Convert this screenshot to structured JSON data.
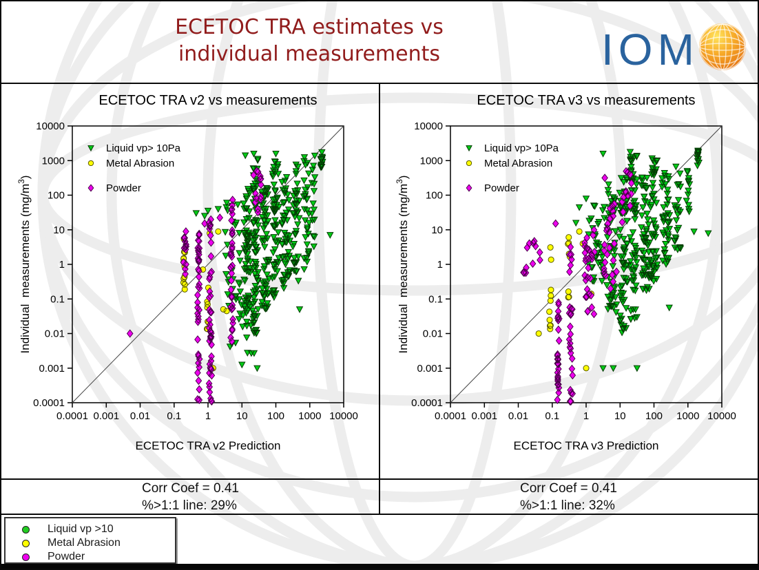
{
  "header": {
    "title_line1": "ECETOC TRA estimates vs",
    "title_line2": "individual measurements",
    "logo_text": "IOM"
  },
  "colors": {
    "title_red": "#911c1c",
    "logo_blue": "#2a639e",
    "liquid_green": "#00cb17",
    "metal_yellow": "#ffff00",
    "powder_magenta": "#ee00ee",
    "watermark_gray": "#ededed",
    "diagonal_line": "#444444"
  },
  "chart_data": [
    {
      "type": "scatter",
      "svg_name": "chart-v2",
      "title": "ECETOC TRA v2 vs measurements",
      "xlabel": "ECETOC TRA v2 Prediction",
      "ylabel_parts": [
        "Individual  measurements (mg/m",
        "3",
        ")"
      ],
      "xlim": [
        0.0001,
        10000
      ],
      "ylim": [
        0.0001,
        10000
      ],
      "log_scale": true,
      "one_to_one_line": true,
      "grid": false,
      "legend_position": "upper-left-inside",
      "x_ticks": [
        "0.0001",
        "0.001",
        "0.01",
        "0.1",
        "1",
        "10",
        "100",
        "1000",
        "10000"
      ],
      "y_ticks": [
        "0.0001",
        "0.001",
        "0.01",
        "0.1",
        "1",
        "10",
        "100",
        "1000",
        "10000"
      ],
      "stats": {
        "line1": "Corr Coef = 0.41",
        "line2": "%>1:1 line: 29%"
      },
      "series": [
        {
          "name": "Liquid vp> 10Pa",
          "marker": "triangle",
          "fill": "#00cb17",
          "stroke": "#033b03",
          "seed": 11,
          "clusters": [
            [
              1.15,
              0.1,
              -1.5,
              2.2,
              60
            ],
            [
              1.4,
              0.08,
              -2.0,
              3.1,
              70
            ],
            [
              1.7,
              0.12,
              -1.3,
              2.3,
              60
            ],
            [
              2.0,
              0.1,
              -1.0,
              3.1,
              55
            ],
            [
              2.3,
              0.12,
              -0.7,
              2.6,
              50
            ],
            [
              2.6,
              0.1,
              -0.5,
              2.9,
              40
            ],
            [
              2.9,
              0.08,
              -0.3,
              3.1,
              30
            ],
            [
              3.1,
              0.05,
              0.5,
              3.2,
              15
            ],
            [
              3.35,
              0.03,
              2.8,
              3.3,
              12
            ],
            [
              0.75,
              0.25,
              -1.2,
              1.8,
              30
            ],
            [
              1.0,
              0.4,
              -2.6,
              -1.2,
              18
            ]
          ],
          "singles": [
            [
              0.0,
              1.55
            ],
            [
              -0.1,
              1.4
            ],
            [
              0.3,
              1.6
            ],
            [
              -0.35,
              1.48
            ],
            [
              1.0,
              -2.9
            ],
            [
              1.45,
              -3.0
            ],
            [
              2.7,
              -1.3
            ],
            [
              3.6,
              0.85
            ],
            [
              1.35,
              3.2
            ],
            [
              2.0,
              3.2
            ],
            [
              1.1,
              3.15
            ]
          ]
        },
        {
          "name": "Metal Abrasion",
          "marker": "circle",
          "fill": "#ffff00",
          "stroke": "#5a5a00",
          "seed": 22,
          "clusters": [
            [
              -0.7,
              0.03,
              -0.75,
              0.9,
              12
            ],
            [
              0.0,
              0.03,
              -2.0,
              0.85,
              8
            ]
          ],
          "singles": [
            [
              0.3,
              0.95
            ],
            [
              0.55,
              -1.35
            ],
            [
              0.45,
              -1.3
            ],
            [
              0.15,
              -3.0
            ],
            [
              -0.15,
              -0.15
            ],
            [
              0.05,
              0.9
            ]
          ]
        },
        {
          "name": "Powder",
          "marker": "diamond",
          "fill": "#ee00ee",
          "stroke": "#4a004a",
          "seed": 33,
          "clusters": [
            [
              -0.68,
              0.05,
              -0.3,
              1.0,
              14
            ],
            [
              -0.28,
              0.03,
              -4.0,
              0.9,
              40
            ],
            [
              0.07,
              0.04,
              -4.0,
              1.3,
              45
            ],
            [
              0.7,
              0.04,
              -2.3,
              2.0,
              35
            ],
            [
              1.45,
              0.12,
              1.5,
              2.75,
              14
            ]
          ],
          "singles": [
            [
              -2.3,
              -2.0
            ],
            [
              -0.1,
              1.18
            ],
            [
              0.35,
              1.35
            ]
          ]
        }
      ]
    },
    {
      "type": "scatter",
      "svg_name": "chart-v3",
      "title": "ECETOC TRA v3 vs measurements",
      "xlabel": "ECETOC TRA v3 Prediction",
      "ylabel_parts": [
        "Individual  measurements (mg/m",
        "3",
        ")"
      ],
      "xlim": [
        0.0001,
        10000
      ],
      "ylim": [
        0.0001,
        10000
      ],
      "log_scale": true,
      "one_to_one_line": true,
      "grid": false,
      "legend_position": "upper-left-inside",
      "x_ticks": [
        "0.0001",
        "0.001",
        "0.01",
        "0.1",
        "1",
        "10",
        "100",
        "1000",
        "10000"
      ],
      "y_ticks": [
        "0.0001",
        "0.001",
        "0.01",
        "0.1",
        "1",
        "10",
        "100",
        "1000",
        "10000"
      ],
      "stats": {
        "line1": "Corr Coef = 0.41",
        "line2": "%>1:1 line: 32%"
      },
      "series": [
        {
          "name": "Liquid vp> 10Pa",
          "marker": "triangle",
          "fill": "#00cb17",
          "stroke": "#033b03",
          "seed": 44,
          "clusters": [
            [
              0.3,
              0.25,
              -0.5,
              1.7,
              35
            ],
            [
              0.75,
              0.15,
              -1.5,
              2.5,
              55
            ],
            [
              1.1,
              0.12,
              -2.0,
              2.5,
              65
            ],
            [
              1.4,
              0.1,
              -1.8,
              3.2,
              65
            ],
            [
              1.75,
              0.12,
              -0.8,
              2.6,
              55
            ],
            [
              2.0,
              0.1,
              -0.5,
              3.1,
              50
            ],
            [
              2.35,
              0.12,
              0.0,
              2.7,
              40
            ],
            [
              2.7,
              0.1,
              0.3,
              2.9,
              25
            ],
            [
              3.0,
              0.05,
              1.5,
              2.8,
              12
            ],
            [
              3.3,
              0.03,
              2.8,
              3.3,
              12
            ]
          ],
          "singles": [
            [
              -0.2,
              1.65
            ],
            [
              0.0,
              1.9
            ],
            [
              -0.3,
              1.2
            ],
            [
              0.5,
              3.2
            ],
            [
              2.45,
              -1.25
            ],
            [
              3.6,
              0.9
            ],
            [
              1.5,
              -3.0
            ],
            [
              0.8,
              -3.0
            ],
            [
              0.5,
              -3.0
            ],
            [
              1.3,
              3.25
            ],
            [
              3.18,
              0.95
            ]
          ]
        },
        {
          "name": "Metal Abrasion",
          "marker": "circle",
          "fill": "#ffff00",
          "stroke": "#5a5a00",
          "seed": 55,
          "clusters": [
            [
              -1.05,
              0.04,
              -2.0,
              0.85,
              10
            ],
            [
              -0.5,
              0.04,
              -1.0,
              0.9,
              8
            ]
          ],
          "singles": [
            [
              -1.4,
              -2.0
            ],
            [
              0.0,
              -3.0
            ],
            [
              0.15,
              -0.85
            ],
            [
              -0.2,
              0.95
            ],
            [
              -0.1,
              0.6
            ],
            [
              0.1,
              -0.9
            ]
          ]
        },
        {
          "name": "Powder",
          "marker": "diamond",
          "fill": "#ee00ee",
          "stroke": "#4a004a",
          "seed": 66,
          "clusters": [
            [
              -1.6,
              0.25,
              -0.25,
              0.75,
              12
            ],
            [
              -0.82,
              0.03,
              -4.0,
              -1.1,
              28
            ],
            [
              -0.45,
              0.05,
              -4.0,
              0.7,
              30
            ],
            [
              0.1,
              0.15,
              -1.5,
              1.0,
              30
            ],
            [
              0.7,
              0.2,
              -0.8,
              2.0,
              25
            ],
            [
              1.2,
              0.15,
              1.0,
              2.7,
              12
            ]
          ],
          "singles": [
            [
              -0.9,
              1.18
            ],
            [
              1.3,
              2.6
            ],
            [
              0.55,
              2.5
            ]
          ]
        }
      ]
    }
  ],
  "footer_legend": {
    "items": [
      {
        "label": "Liquid vp >10",
        "color": "#22cc22"
      },
      {
        "label": "Metal Abrasion",
        "color": "#ffff00"
      },
      {
        "label": "Powder",
        "color": "#ee00ee"
      }
    ]
  }
}
